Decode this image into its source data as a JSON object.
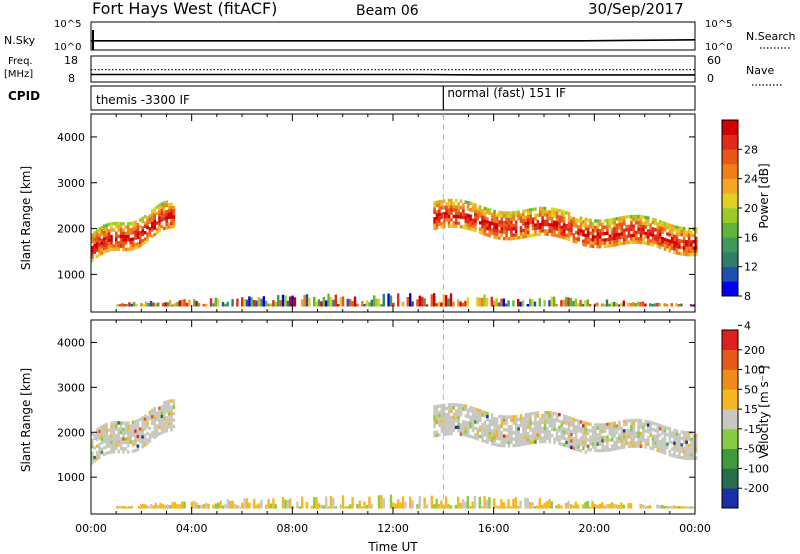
{
  "header": {
    "title": "Fort Hays West (fitACF)",
    "beam": "Beam 06",
    "date": "30/Sep/2017"
  },
  "chart_data": [
    {
      "type": "line",
      "name": "nsky-nsearch-panel",
      "left_labels": [
        "N.Sky"
      ],
      "left_ticks": [
        "10^5",
        "10^0"
      ],
      "right_ticks": [
        "10^5",
        "10^0"
      ],
      "right_label": "N.Search",
      "series": [
        {
          "values": [
            1.5,
            1.5,
            1.5,
            1.5,
            1.5,
            1.5,
            1.5,
            1.5,
            1.5,
            1.5,
            1.6,
            1.7
          ]
        }
      ]
    },
    {
      "type": "line",
      "name": "freq-nave-panel",
      "left_labels": [
        "Freq.",
        "[MHz]"
      ],
      "left_ticks": [
        "18",
        "8"
      ],
      "right_ticks": [
        "60",
        "0"
      ],
      "right_label": "Nave",
      "series": [
        {
          "values": [
            10.5,
            10.5,
            10.5,
            10.5,
            10.5,
            10.5,
            10.5,
            10.3,
            10.3,
            10.3,
            10.3,
            10.3
          ]
        },
        {
          "values": [
            28,
            28,
            28,
            28,
            28,
            28,
            28,
            28,
            28,
            28,
            28,
            28
          ]
        }
      ]
    },
    {
      "type": "table",
      "name": "cpid-panel",
      "label": "CPID",
      "modes": [
        {
          "label": "themis -3300 IF",
          "start_hour": 0
        },
        {
          "label": "normal (fast) 151 IF",
          "start_hour": 14
        }
      ]
    },
    {
      "type": "heatmap",
      "name": "power-panel",
      "ylabel": "Slant Range [km]",
      "y_ticks": [
        "4000",
        "3000",
        "2000",
        "1000"
      ],
      "ylim": [
        180,
        4500
      ],
      "xlim": [
        0,
        24
      ],
      "colorbar_label": "Power [dB]",
      "colorbar_ticks": [
        "28",
        "24",
        "20",
        "16",
        "12",
        "8",
        "4"
      ],
      "colorbar_colors": [
        "#0000f0",
        "#1f4fb0",
        "#2e7d6a",
        "#3f9a57",
        "#63b33a",
        "#9acb2a",
        "#e0d020",
        "#f5a623",
        "#f07f1a",
        "#e8561a",
        "#e02a1a",
        "#d40000"
      ],
      "echo_bands": [
        {
          "t0": 0.0,
          "t1": 3.3,
          "r0": 1300,
          "r1": 2000,
          "r2": 1900,
          "r3": 2600
        },
        {
          "t0": 13.6,
          "t1": 24.0,
          "r0": 2000,
          "r1": 1500,
          "r2": 2600,
          "r3": 2100
        }
      ],
      "ground_scatter": {
        "r": 300
      }
    },
    {
      "type": "heatmap",
      "name": "velocity-panel",
      "ylabel": "Slant Range [km]",
      "y_ticks": [
        "4000",
        "3000",
        "2000",
        "1000"
      ],
      "ylim": [
        180,
        4500
      ],
      "xlim": [
        0,
        24
      ],
      "xlabel": "Time UT",
      "x_ticks": [
        "00:00",
        "04:00",
        "08:00",
        "12:00",
        "16:00",
        "20:00",
        "00:00"
      ],
      "colorbar_label": "Velocity [m s⁻¹]",
      "colorbar_ticks": [
        "200",
        "100",
        "50",
        "15",
        "-15",
        "-50",
        "-100",
        "-200"
      ],
      "colorbar_colors": [
        "#1a2ea8",
        "#2a6c4e",
        "#3e9a3a",
        "#88cc44",
        "#c8c8c0",
        "#f5b820",
        "#f08a1a",
        "#e85a1a",
        "#e02020"
      ],
      "echo_bands": [
        {
          "t0": 0.0,
          "t1": 3.3,
          "r0": 1300,
          "r1": 2000,
          "r2": 2000,
          "r3": 2700
        },
        {
          "t0": 13.6,
          "t1": 24.0,
          "r0": 1900,
          "r1": 1500,
          "r2": 2600,
          "r3": 2100
        }
      ],
      "ground_scatter": {
        "r": 300
      }
    }
  ]
}
